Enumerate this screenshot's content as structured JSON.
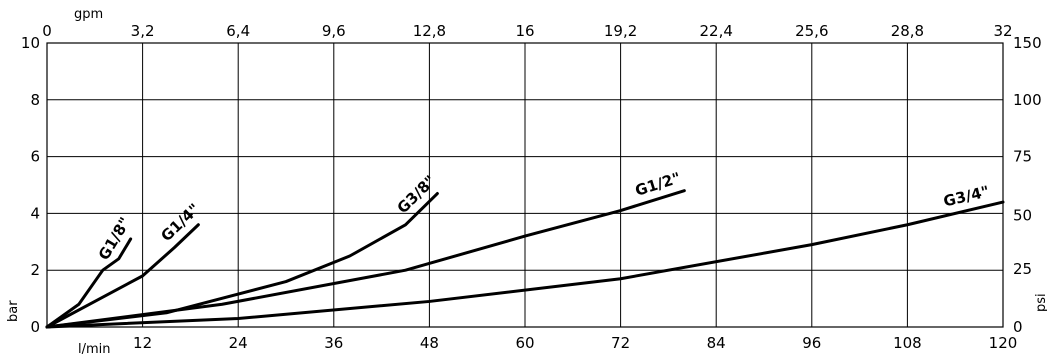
{
  "chart_data": {
    "type": "line",
    "x_axis_bottom": {
      "label": "l/min",
      "range": [
        0,
        120
      ],
      "ticks": [
        "12",
        "24",
        "36",
        "48",
        "60",
        "72",
        "84",
        "96",
        "108",
        "120"
      ]
    },
    "x_axis_top": {
      "label": "gpm",
      "range": [
        0,
        32
      ],
      "ticks": [
        "0",
        "3,2",
        "6,4",
        "9,6",
        "12,8",
        "16",
        "19,2",
        "22,4",
        "25,6",
        "28,8",
        "32"
      ]
    },
    "y_axis_left": {
      "label": "bar",
      "range": [
        0,
        10
      ],
      "ticks": [
        "0",
        "2",
        "4",
        "6",
        "8",
        "10"
      ]
    },
    "y_axis_right": {
      "label": "psi",
      "range": [
        0,
        150
      ],
      "ticks": [
        "0",
        "25",
        "50",
        "75",
        "100",
        "150"
      ]
    },
    "grid": true,
    "series": [
      {
        "name": "G1/8\"",
        "x": [
          0,
          4,
          7,
          9,
          10.5
        ],
        "y": [
          0,
          0.8,
          2.0,
          2.4,
          3.1
        ]
      },
      {
        "name": "G1/4\"",
        "x": [
          0,
          6,
          12,
          16,
          19
        ],
        "y": [
          0,
          0.9,
          1.8,
          2.8,
          3.6
        ]
      },
      {
        "name": "G3/8\"",
        "x": [
          0,
          15,
          30,
          38,
          45,
          49
        ],
        "y": [
          0,
          0.5,
          1.6,
          2.5,
          3.6,
          4.7
        ]
      },
      {
        "name": "G1/2\"",
        "x": [
          0,
          22,
          45,
          60,
          72,
          80
        ],
        "y": [
          0,
          0.8,
          2.0,
          3.2,
          4.1,
          4.8
        ]
      },
      {
        "name": "G3/4\"",
        "x": [
          0,
          24,
          48,
          72,
          96,
          108,
          120
        ],
        "y": [
          0,
          0.3,
          0.9,
          1.7,
          2.9,
          3.6,
          4.4
        ]
      }
    ]
  }
}
